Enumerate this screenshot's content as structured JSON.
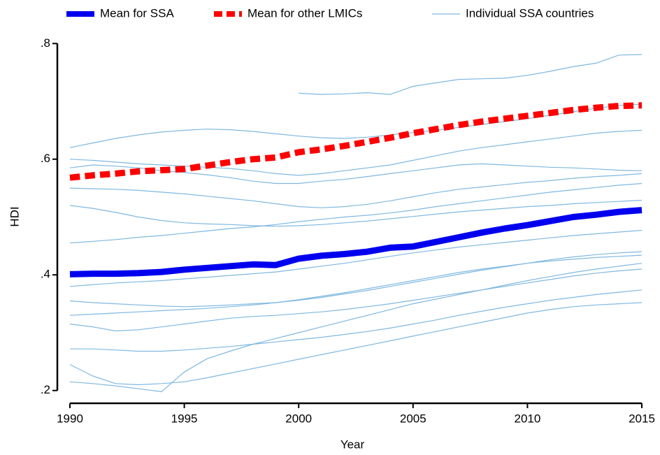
{
  "chart_data": {
    "type": "line",
    "x_label": "Year",
    "y_label": "HDI",
    "x": [
      1990,
      1991,
      1992,
      1993,
      1994,
      1995,
      1996,
      1997,
      1998,
      1999,
      2000,
      2001,
      2002,
      2003,
      2004,
      2005,
      2006,
      2007,
      2008,
      2009,
      2010,
      2011,
      2012,
      2013,
      2014,
      2015
    ],
    "xlim": [
      1990,
      2015
    ],
    "xticks": [
      1990,
      1995,
      2000,
      2005,
      2010,
      2015
    ],
    "ylim": [
      0.19,
      0.81
    ],
    "yticks": [
      {
        "value": 0.2,
        "label": ".2"
      },
      {
        "value": 0.4,
        "label": ".4"
      },
      {
        "value": 0.6,
        "label": ".6"
      },
      {
        "value": 0.8,
        "label": ".8"
      }
    ],
    "grid": false,
    "legend": "top",
    "series": [
      {
        "name": "Mean for SSA",
        "color": "#0000ee",
        "linewidth": 9,
        "dashed": false,
        "values": [
          0.401,
          0.402,
          0.402,
          0.403,
          0.405,
          0.409,
          0.412,
          0.415,
          0.418,
          0.417,
          0.428,
          0.433,
          0.436,
          0.44,
          0.447,
          0.449,
          0.457,
          0.465,
          0.473,
          0.48,
          0.486,
          0.493,
          0.5,
          0.504,
          0.509,
          0.512
        ]
      },
      {
        "name": "Mean for other LMICs",
        "color": "#ff0000",
        "linewidth": 9,
        "dashed": true,
        "values": [
          0.568,
          0.572,
          0.575,
          0.579,
          0.581,
          0.583,
          0.589,
          0.595,
          0.6,
          0.603,
          0.612,
          0.617,
          0.623,
          0.63,
          0.637,
          0.645,
          0.652,
          0.659,
          0.665,
          0.67,
          0.675,
          0.68,
          0.685,
          0.689,
          0.692,
          0.693
        ]
      },
      {
        "name": "Individual SSA countries",
        "color": "#7fb8e0",
        "linewidth": 1.2,
        "dashed": false,
        "lines": [
          [
            0.62,
            0.628,
            0.636,
            0.642,
            0.647,
            0.65,
            0.652,
            0.651,
            0.648,
            0.644,
            0.64,
            0.637,
            0.636,
            0.638,
            0.642,
            0.646,
            0.65,
            0.655,
            0.66,
            0.665,
            0.67,
            0.676,
            0.682,
            0.688,
            0.693,
            0.695
          ],
          [
            null,
            null,
            null,
            null,
            null,
            null,
            null,
            null,
            null,
            null,
            0.714,
            0.712,
            0.713,
            0.715,
            0.712,
            0.726,
            0.732,
            0.738,
            0.739,
            0.74,
            0.745,
            0.752,
            0.76,
            0.766,
            0.78,
            0.781
          ],
          [
            0.585,
            0.59,
            0.588,
            0.585,
            0.58,
            0.577,
            0.573,
            0.568,
            0.562,
            0.558,
            0.558,
            0.562,
            0.565,
            0.57,
            0.575,
            0.58,
            0.585,
            0.59,
            0.592,
            0.59,
            0.588,
            0.586,
            0.585,
            0.583,
            0.581,
            0.58
          ],
          [
            0.55,
            0.549,
            0.548,
            0.546,
            0.543,
            0.54,
            0.536,
            0.532,
            0.528,
            0.523,
            0.518,
            0.516,
            0.518,
            0.522,
            0.528,
            0.535,
            0.542,
            0.548,
            0.552,
            0.556,
            0.56,
            0.563,
            0.567,
            0.57,
            0.572,
            0.575
          ],
          [
            0.52,
            0.515,
            0.508,
            0.5,
            0.494,
            0.49,
            0.488,
            0.487,
            0.485,
            0.484,
            0.485,
            0.487,
            0.49,
            0.493,
            0.497,
            0.501,
            0.505,
            0.509,
            0.512,
            0.515,
            0.518,
            0.52,
            0.523,
            0.525,
            0.527,
            0.529
          ],
          [
            0.455,
            0.458,
            0.461,
            0.465,
            0.468,
            0.472,
            0.476,
            0.48,
            0.483,
            0.487,
            0.492,
            0.496,
            0.5,
            0.503,
            0.507,
            0.512,
            0.518,
            0.523,
            0.528,
            0.533,
            0.538,
            0.543,
            0.547,
            0.551,
            0.555,
            0.558
          ],
          [
            0.38,
            0.383,
            0.386,
            0.388,
            0.39,
            0.393,
            0.396,
            0.399,
            0.402,
            0.405,
            0.41,
            0.415,
            0.42,
            0.426,
            0.432,
            0.438,
            0.443,
            0.448,
            0.452,
            0.456,
            0.46,
            0.464,
            0.468,
            0.471,
            0.474,
            0.477
          ],
          [
            0.355,
            0.352,
            0.35,
            0.348,
            0.346,
            0.345,
            0.346,
            0.348,
            0.35,
            0.352,
            0.356,
            0.361,
            0.367,
            0.373,
            0.38,
            0.387,
            0.394,
            0.401,
            0.408,
            0.414,
            0.42,
            0.426,
            0.431,
            0.435,
            0.438,
            0.44
          ],
          [
            0.33,
            0.332,
            0.334,
            0.336,
            0.338,
            0.34,
            0.342,
            0.345,
            0.348,
            0.352,
            0.357,
            0.363,
            0.369,
            0.376,
            0.383,
            0.39,
            0.397,
            0.404,
            0.41,
            0.415,
            0.42,
            0.424,
            0.427,
            0.43,
            0.432,
            0.434
          ],
          [
            0.315,
            0.31,
            0.303,
            0.305,
            0.31,
            0.315,
            0.32,
            0.325,
            0.328,
            0.33,
            0.333,
            0.336,
            0.34,
            0.345,
            0.35,
            0.356,
            0.362,
            0.368,
            0.374,
            0.38,
            0.386,
            0.392,
            0.398,
            0.403,
            0.407,
            0.41
          ],
          [
            0.272,
            0.272,
            0.27,
            0.268,
            0.268,
            0.27,
            0.273,
            0.276,
            0.28,
            0.284,
            0.288,
            0.292,
            0.297,
            0.302,
            0.308,
            0.315,
            0.322,
            0.33,
            0.337,
            0.344,
            0.35,
            0.356,
            0.361,
            0.366,
            0.37,
            0.374
          ],
          [
            0.245,
            0.225,
            0.212,
            0.21,
            0.212,
            0.215,
            0.222,
            0.23,
            0.238,
            0.246,
            0.254,
            0.262,
            0.27,
            0.278,
            0.286,
            0.294,
            0.302,
            0.31,
            0.318,
            0.326,
            0.334,
            0.34,
            0.345,
            0.348,
            0.35,
            0.352
          ],
          [
            0.215,
            0.212,
            0.208,
            0.203,
            0.198,
            0.232,
            0.255,
            0.268,
            0.28,
            0.29,
            0.3,
            0.31,
            0.32,
            0.33,
            0.34,
            0.35,
            0.358,
            0.366,
            0.374,
            0.382,
            0.39,
            0.397,
            0.404,
            0.41,
            0.415,
            0.42
          ],
          [
            0.6,
            0.598,
            0.595,
            0.592,
            0.59,
            0.588,
            0.586,
            0.584,
            0.58,
            0.575,
            0.572,
            0.575,
            0.58,
            0.585,
            0.59,
            0.598,
            0.606,
            0.614,
            0.62,
            0.625,
            0.63,
            0.635,
            0.64,
            0.645,
            0.648,
            0.65
          ]
        ]
      }
    ]
  }
}
